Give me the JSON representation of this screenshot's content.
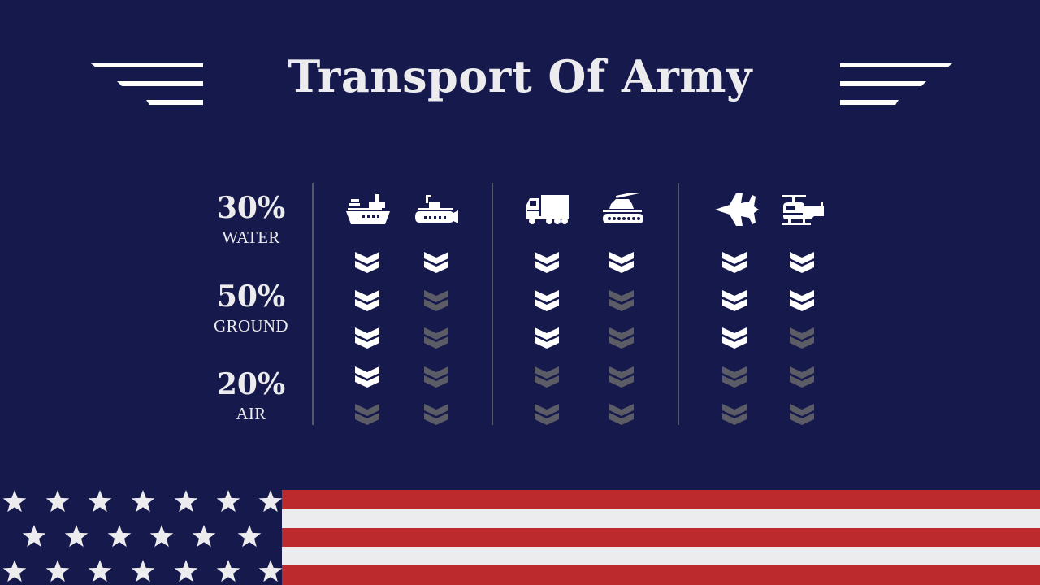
{
  "title": "Transport Of Army",
  "stats": [
    {
      "value": "30%",
      "label": "WATER"
    },
    {
      "value": "50%",
      "label": "GROUND"
    },
    {
      "value": "20%",
      "label": "AIR"
    }
  ],
  "colors": {
    "background": "#16194c",
    "text": "#ecebee",
    "chevron_active": "#ffffff",
    "chevron_inactive": "#5c5c66",
    "flag_red": "#bd2a2e",
    "flag_white": "#ecebee",
    "divider": "#55576d"
  },
  "groups": [
    {
      "name": "water",
      "vehicles": [
        {
          "icon": "ship-icon",
          "filled": 4
        },
        {
          "icon": "submarine-icon",
          "filled": 1
        }
      ]
    },
    {
      "name": "ground",
      "vehicles": [
        {
          "icon": "truck-icon",
          "filled": 3
        },
        {
          "icon": "tank-icon",
          "filled": 1
        }
      ]
    },
    {
      "name": "air",
      "vehicles": [
        {
          "icon": "fighter-jet-icon",
          "filled": 3
        },
        {
          "icon": "helicopter-icon",
          "filled": 2
        }
      ]
    }
  ],
  "chevrons_per_column": 5
}
